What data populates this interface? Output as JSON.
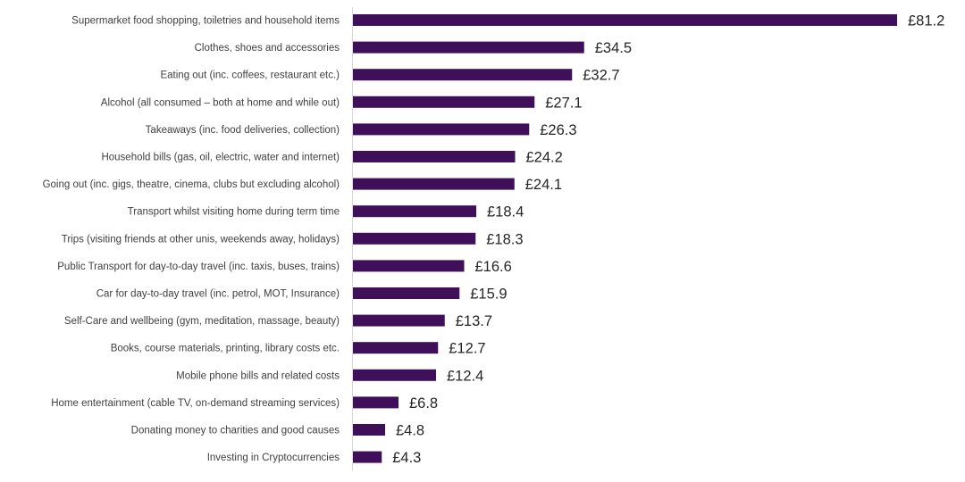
{
  "chart_data": {
    "type": "bar",
    "orientation": "horizontal",
    "title": "",
    "xlabel": "",
    "ylabel": "",
    "value_prefix": "£",
    "xlim": [
      0,
      81.2
    ],
    "grid": false,
    "legend": "none",
    "bar_color": "#3f0f5a",
    "axis_color": "#d9d9d9",
    "categories": [
      "Supermarket food shopping, toiletries and household items",
      "Clothes, shoes and accessories",
      "Eating out (inc. coffees, restaurant etc.)",
      "Alcohol (all consumed – both at home and while out)",
      "Takeaways (inc. food deliveries, collection)",
      "Household bills (gas, oil, electric, water and internet)",
      "Going out (inc. gigs, theatre, cinema, clubs but excluding alcohol)",
      "Transport whilst visiting home during term time",
      "Trips (visiting friends at other unis, weekends away, holidays)",
      "Public Transport for day-to-day travel (inc. taxis, buses, trains)",
      "Car for day-to-day travel (inc. petrol, MOT, Insurance)",
      "Self-Care and wellbeing (gym, meditation, massage, beauty)",
      "Books, course materials, printing, library costs etc.",
      "Mobile phone bills and related costs",
      "Home entertainment (cable TV, on-demand streaming services)",
      "Donating money to charities and good causes",
      "Investing in Cryptocurrencies"
    ],
    "values": [
      81.2,
      34.5,
      32.7,
      27.1,
      26.3,
      24.2,
      24.1,
      18.4,
      18.3,
      16.6,
      15.9,
      13.7,
      12.7,
      12.4,
      6.8,
      4.8,
      4.3
    ],
    "value_labels": [
      "£81.2",
      "£34.5",
      "£32.7",
      "£27.1",
      "£26.3",
      "£24.2",
      "£24.1",
      "£18.4",
      "£18.3",
      "£16.6",
      "£15.9",
      "£13.7",
      "£12.7",
      "£12.4",
      "£6.8",
      "£4.8",
      "£4.3"
    ]
  }
}
